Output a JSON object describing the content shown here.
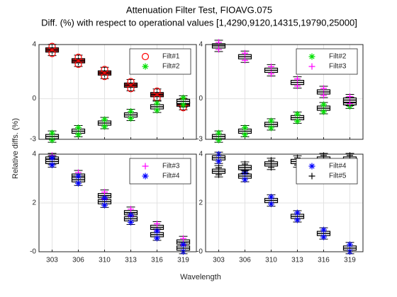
{
  "figure": {
    "title": "Attenuation Filter Test, FIOAVG.075",
    "subtitle": "Diff. (%) with respect to operational values [1,4290,9120,14315,19790,25000]",
    "ylabel": "Relative diffs. (%)",
    "xlabel": "Wavelength"
  },
  "chart_data": [
    {
      "type": "box",
      "ylim": [
        -3,
        4
      ],
      "yticks": [
        -3,
        0,
        4
      ],
      "grid": true,
      "legend": "upper right",
      "series": [
        {
          "name": "Filt#1",
          "color": "#ff0000",
          "marker": "circle",
          "box_fill": "#b22222",
          "values": [
            3.6,
            2.8,
            1.9,
            1.0,
            0.3,
            -0.4
          ]
        },
        {
          "name": "Filt#2",
          "color": "#00e000",
          "marker": "star",
          "box_fill": "#ffffff",
          "values": [
            -2.8,
            -2.4,
            -1.8,
            -1.2,
            -0.6,
            -0.2
          ]
        }
      ]
    },
    {
      "type": "box",
      "ylim": [
        -3,
        4
      ],
      "yticks": [
        -3,
        0,
        4
      ],
      "grid": true,
      "legend": "upper right",
      "series": [
        {
          "name": "Filt#2",
          "color": "#00e000",
          "marker": "star",
          "box_fill": "#ffffff",
          "values": [
            -2.8,
            -2.4,
            -1.9,
            -1.4,
            -0.7,
            -0.3
          ]
        },
        {
          "name": "Filt#3",
          "color": "#ff00ff",
          "marker": "plus",
          "box_fill": "#ffffff",
          "values": [
            3.9,
            3.1,
            2.1,
            1.2,
            0.5,
            -0.1
          ]
        }
      ]
    },
    {
      "type": "box",
      "ylim": [
        0,
        4
      ],
      "yticks": [
        {
          "value": 0,
          "label": "-0"
        },
        2,
        4
      ],
      "grid": true,
      "legend": "upper right",
      "categories": [
        "303",
        "306",
        "310",
        "313",
        "316",
        "319"
      ],
      "series": [
        {
          "name": "Filt#3",
          "color": "#ff00ff",
          "marker": "plus",
          "box_fill": "#ffffff",
          "values": [
            3.8,
            3.1,
            2.3,
            1.6,
            1.0,
            0.4
          ]
        },
        {
          "name": "Filt#4",
          "color": "#0000ff",
          "marker": "star",
          "box_fill": "#ffffff",
          "values": [
            3.7,
            2.95,
            2.05,
            1.35,
            0.7,
            0.15
          ]
        }
      ]
    },
    {
      "type": "box",
      "ylim": [
        0,
        4
      ],
      "yticks": [
        {
          "value": 0,
          "label": "-0"
        },
        2,
        4
      ],
      "grid": true,
      "legend": "upper right",
      "categories": [
        "303",
        "306",
        "310",
        "313",
        "316",
        "319"
      ],
      "series": [
        {
          "name": "Filt#4",
          "color": "#0000ff",
          "marker": "star",
          "box_fill": "#ffffff",
          "values": [
            3.85,
            3.1,
            2.1,
            1.45,
            0.75,
            0.15
          ]
        },
        {
          "name": "Filt#5",
          "color": "#000000",
          "marker": "plus",
          "box_fill": "#ffffff",
          "values": [
            3.3,
            3.45,
            3.6,
            3.7,
            3.8,
            3.8
          ]
        }
      ]
    }
  ]
}
